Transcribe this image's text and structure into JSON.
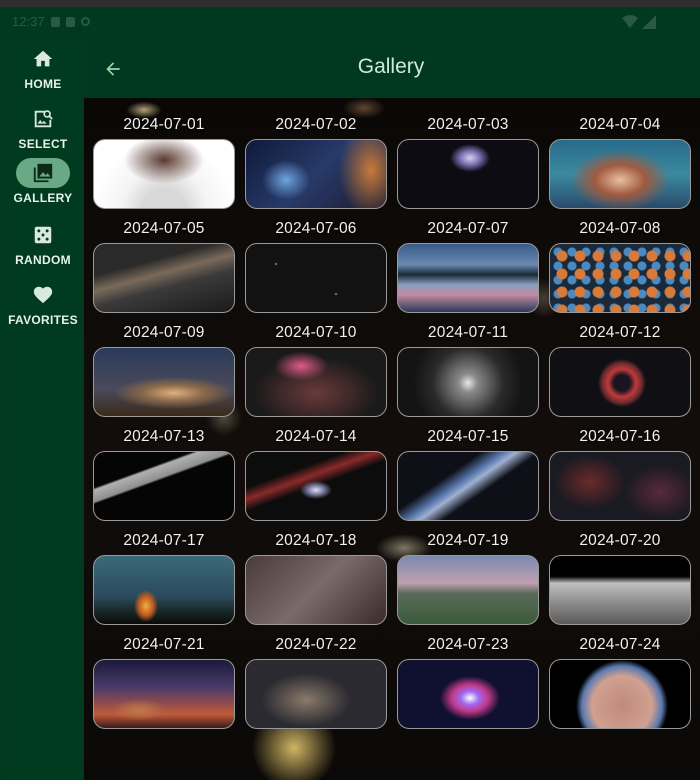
{
  "status": {
    "time": "12:37"
  },
  "rail": {
    "items": [
      {
        "label": "HOME",
        "icon": "home-icon",
        "active": false
      },
      {
        "label": "SELECT",
        "icon": "image-search-icon",
        "active": false
      },
      {
        "label": "GALLERY",
        "icon": "photo-library-icon",
        "active": true
      },
      {
        "label": "RANDOM",
        "icon": "dice-icon",
        "active": false
      },
      {
        "label": "FAVORITES",
        "icon": "heart-icon",
        "active": false
      }
    ]
  },
  "appbar": {
    "title": "Gallery",
    "back_icon": "arrow-back-icon"
  },
  "gallery": {
    "items": [
      {
        "date": "2024-07-01"
      },
      {
        "date": "2024-07-02"
      },
      {
        "date": "2024-07-03"
      },
      {
        "date": "2024-07-04"
      },
      {
        "date": "2024-07-05"
      },
      {
        "date": "2024-07-06"
      },
      {
        "date": "2024-07-07"
      },
      {
        "date": "2024-07-08"
      },
      {
        "date": "2024-07-09"
      },
      {
        "date": "2024-07-10"
      },
      {
        "date": "2024-07-11"
      },
      {
        "date": "2024-07-12"
      },
      {
        "date": "2024-07-13"
      },
      {
        "date": "2024-07-14"
      },
      {
        "date": "2024-07-15"
      },
      {
        "date": "2024-07-16"
      },
      {
        "date": "2024-07-17"
      },
      {
        "date": "2024-07-18"
      },
      {
        "date": "2024-07-19"
      },
      {
        "date": "2024-07-20"
      },
      {
        "date": "2024-07-21"
      },
      {
        "date": "2024-07-22"
      },
      {
        "date": "2024-07-23"
      },
      {
        "date": "2024-07-24"
      }
    ]
  },
  "colors": {
    "background": "#00391f",
    "active_pill": "#6aa985",
    "title": "#cfe9d5"
  }
}
